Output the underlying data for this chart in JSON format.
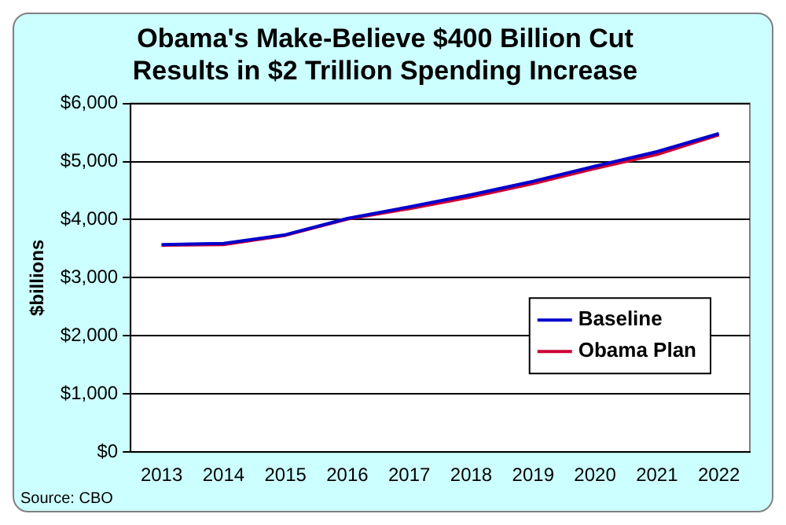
{
  "chart_data": {
    "type": "line",
    "title": "Obama's Make-Believe $400 Billion Cut Results in $2 Trillion Spending Increase",
    "ylabel": "$billions",
    "categories": [
      "2013",
      "2014",
      "2015",
      "2016",
      "2017",
      "2018",
      "2019",
      "2020",
      "2021",
      "2022"
    ],
    "series": [
      {
        "name": "Baseline",
        "color": "#0000cc",
        "values": [
          3570,
          3590,
          3740,
          4020,
          4220,
          4430,
          4660,
          4920,
          5170,
          5480
        ]
      },
      {
        "name": "Obama Plan",
        "color": "#cc0033",
        "values": [
          3560,
          3570,
          3730,
          4010,
          4190,
          4390,
          4620,
          4880,
          5120,
          5460
        ]
      }
    ],
    "ylim": [
      0,
      6000
    ],
    "yticks": [
      {
        "value": 0,
        "label": "$0"
      },
      {
        "value": 1000,
        "label": "$1,000"
      },
      {
        "value": 2000,
        "label": "$2,000"
      },
      {
        "value": 3000,
        "label": "$3,000"
      },
      {
        "value": 4000,
        "label": "$4,000"
      },
      {
        "value": 5000,
        "label": "$5,000"
      },
      {
        "value": 6000,
        "label": "$6,000"
      }
    ],
    "grid": "y",
    "legend": "bottom right",
    "marker": "none",
    "line_style": "solid",
    "annotations": [
      "Source: CBO"
    ]
  }
}
